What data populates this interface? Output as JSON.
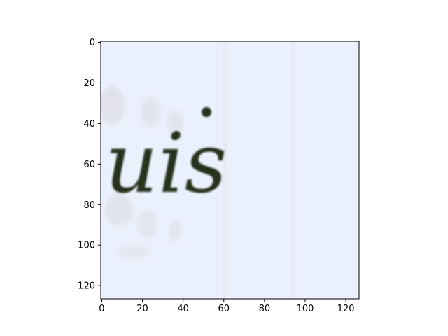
{
  "image": {
    "word": "uis",
    "background_color": "#ebf1fc",
    "ink_color": "#27301f",
    "bleed_color": "#d9d6dc"
  },
  "axes": {
    "x_ticks": [
      "0",
      "20",
      "40",
      "60",
      "80",
      "100",
      "120"
    ],
    "y_ticks": [
      "0",
      "20",
      "40",
      "60",
      "80",
      "100",
      "120"
    ],
    "xlim": [
      -0.5,
      126.5
    ],
    "ylim": [
      126.5,
      -0.5
    ]
  }
}
